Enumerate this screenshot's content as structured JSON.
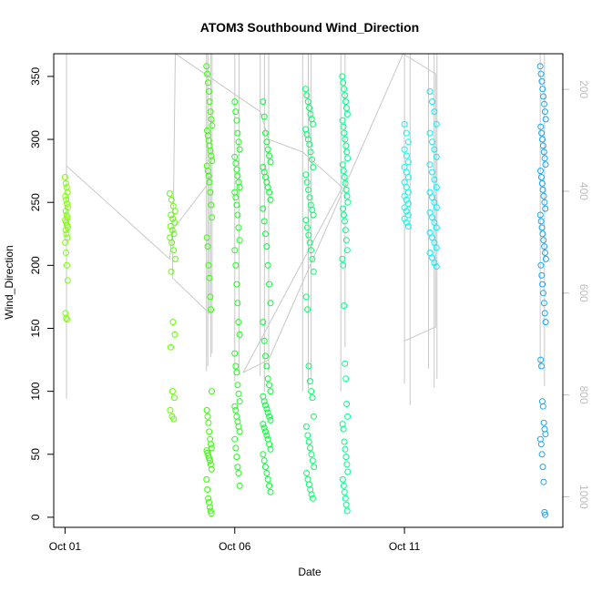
{
  "chart_data": {
    "type": "scatter",
    "title": "ATOM3 Southbound Wind_Direction",
    "xlabel": "Date",
    "ylabel": "Wind_Direction",
    "x_ticks": [
      {
        "date": "2016-10-01",
        "label": "Oct 01"
      },
      {
        "date": "2016-10-06",
        "label": "Oct 06"
      },
      {
        "date": "2016-10-11",
        "label": "Oct 11"
      }
    ],
    "xlim": [
      "2016-09-30T16:00",
      "2016-10-15T16:00"
    ],
    "y_ticks": [
      0,
      50,
      100,
      150,
      200,
      250,
      300,
      350
    ],
    "ylim": [
      -8,
      368
    ],
    "y2_ticks": [
      200,
      400,
      600,
      800,
      1000
    ],
    "y2lim": [
      1060,
      130
    ],
    "y2_axis_color": "#bdbdbd",
    "secondary_line_color": "#c8c8c8",
    "marker": "open-circle",
    "clusters": [
      {
        "start": "2016-10-01T00:00",
        "end": "2016-10-01T02:00",
        "color": "#7cff00",
        "values": [
          270,
          265,
          262,
          258,
          255,
          252,
          249,
          246,
          243,
          240,
          238,
          236,
          234,
          232,
          230,
          228,
          225,
          222,
          218,
          210,
          200,
          188,
          162,
          158,
          157
        ]
      },
      {
        "start": "2016-10-04T02:00",
        "end": "2016-10-04T06:00",
        "color": "#5eff00",
        "values": [
          257,
          252,
          247,
          243,
          240,
          237,
          234,
          231,
          228,
          225,
          222,
          218,
          212,
          205,
          195,
          155,
          145,
          135,
          100,
          95,
          85,
          80,
          78
        ]
      },
      {
        "start": "2016-10-05T04:00",
        "end": "2016-10-05T08:00",
        "color": "#33ff00",
        "values": [
          358,
          352,
          345,
          338,
          330,
          322,
          316,
          311,
          307,
          303,
          299,
          295,
          291,
          287,
          283,
          279,
          275,
          271,
          266,
          258,
          248,
          238,
          222,
          215,
          200,
          190,
          175,
          165,
          100,
          85,
          80,
          75,
          68,
          62,
          58,
          55,
          53,
          51,
          49,
          47,
          45,
          42,
          38,
          30,
          22,
          15,
          12,
          8,
          5,
          3
        ]
      },
      {
        "start": "2016-10-06T00:00",
        "end": "2016-10-06T04:00",
        "color": "#1aff1a",
        "values": [
          330,
          322,
          315,
          305,
          298,
          292,
          286,
          281,
          276,
          271,
          266,
          262,
          258,
          254,
          248,
          240,
          230,
          220,
          212,
          200,
          185,
          170,
          155,
          145,
          130,
          120,
          115,
          105,
          98,
          92,
          88,
          85,
          80,
          76,
          72,
          68,
          62,
          55,
          48,
          40,
          35,
          25
        ]
      },
      {
        "start": "2016-10-06T20:00",
        "end": "2016-10-07T02:00",
        "color": "#00ff33",
        "values": [
          330,
          318,
          305,
          298,
          292,
          287,
          282,
          278,
          274,
          270,
          266,
          262,
          258,
          252,
          245,
          235,
          225,
          215,
          200,
          185,
          170,
          155,
          140,
          128,
          120,
          110,
          105,
          100,
          96,
          92,
          89,
          86,
          83,
          80,
          77,
          74,
          71,
          68,
          65,
          62,
          58,
          54,
          50,
          45,
          40,
          35,
          30,
          25,
          20
        ]
      },
      {
        "start": "2016-10-08T02:00",
        "end": "2016-10-08T08:00",
        "color": "#00ff66",
        "values": [
          340,
          335,
          330,
          325,
          320,
          316,
          312,
          308,
          304,
          300,
          296,
          290,
          284,
          278,
          272,
          266,
          260,
          254,
          248,
          244,
          240,
          236,
          230,
          224,
          218,
          212,
          205,
          195,
          175,
          165,
          120,
          108,
          100,
          95,
          80,
          72,
          65,
          60,
          55,
          50,
          45,
          40,
          35,
          30,
          26,
          22,
          18,
          15
        ]
      },
      {
        "start": "2016-10-09T04:00",
        "end": "2016-10-09T08:00",
        "color": "#00ff88",
        "values": [
          350,
          345,
          340,
          335,
          330,
          325,
          320,
          315,
          310,
          305,
          300,
          295,
          290,
          285,
          280,
          275,
          270,
          265,
          260,
          255,
          250,
          245,
          240,
          235,
          228,
          220,
          212,
          205,
          200,
          168,
          122,
          110,
          90,
          80,
          74,
          70,
          60,
          54,
          48,
          42,
          36,
          30,
          25,
          20,
          15,
          10,
          5
        ]
      },
      {
        "start": "2016-10-11T00:00",
        "end": "2016-10-11T04:00",
        "color": "#00ffee",
        "values": [
          312,
          305,
          298,
          292,
          287,
          282,
          278,
          274,
          270,
          266,
          262,
          258,
          255,
          252,
          249,
          246,
          243,
          240,
          237,
          234,
          231
        ]
      },
      {
        "start": "2016-10-11T18:00",
        "end": "2016-10-12T00:00",
        "color": "#00f0ff",
        "values": [
          338,
          330,
          322,
          312,
          305,
          298,
          292,
          286,
          280,
          274,
          268,
          262,
          258,
          254,
          250,
          246,
          242,
          238,
          234,
          230,
          226,
          222,
          218,
          214,
          210,
          206,
          202,
          199
        ]
      },
      {
        "start": "2016-10-15T00:00",
        "end": "2016-10-15T04:00",
        "color": "#1aa6f0",
        "values": [
          358,
          352,
          346,
          340,
          334,
          328,
          322,
          316,
          310,
          305,
          300,
          295,
          290,
          285,
          280,
          275,
          270,
          265,
          260,
          255,
          250,
          245,
          240,
          235,
          230,
          225,
          220,
          215,
          210,
          205,
          200,
          192,
          185,
          178,
          170,
          162,
          155,
          125,
          120,
          92,
          88,
          75,
          70,
          66,
          62,
          58,
          50,
          40,
          28,
          4,
          2
        ]
      }
    ],
    "secondary_lines": [
      {
        "date": "2016-10-01T01:00",
        "lo": 94,
        "hi": 368
      },
      {
        "date": "2016-10-05T04:00",
        "lo": 116,
        "hi": 368
      },
      {
        "date": "2016-10-05T05:00",
        "lo": 120,
        "hi": 368
      },
      {
        "date": "2016-10-05T07:00",
        "lo": 127,
        "hi": 368
      },
      {
        "date": "2016-10-05T08:00",
        "lo": 130,
        "hi": 368
      },
      {
        "date": "2016-10-06T00:00",
        "lo": 108,
        "hi": 368
      },
      {
        "date": "2016-10-06T03:00",
        "lo": 116,
        "hi": 368
      },
      {
        "date": "2016-10-06T18:00",
        "lo": 112,
        "hi": 368
      },
      {
        "date": "2016-10-06T21:00",
        "lo": 100,
        "hi": 368
      },
      {
        "date": "2016-10-07T00:00",
        "lo": 115,
        "hi": 368
      },
      {
        "date": "2016-10-08T00:00",
        "lo": 100,
        "hi": 368
      },
      {
        "date": "2016-10-08T04:00",
        "lo": 102,
        "hi": 368
      },
      {
        "date": "2016-10-08T06:00",
        "lo": 110,
        "hi": 368
      },
      {
        "date": "2016-10-09T03:00",
        "lo": 100,
        "hi": 368
      },
      {
        "date": "2016-10-09T06:00",
        "lo": 135,
        "hi": 368
      },
      {
        "date": "2016-10-11T00:00",
        "lo": 106,
        "hi": 368
      },
      {
        "date": "2016-10-11T04:00",
        "lo": 89,
        "hi": 368
      },
      {
        "date": "2016-10-11T17:00",
        "lo": 118,
        "hi": 368
      },
      {
        "date": "2016-10-11T21:00",
        "lo": 103,
        "hi": 368
      },
      {
        "date": "2016-10-11T23:00",
        "lo": 110,
        "hi": 368
      },
      {
        "date": "2016-10-15T00:00",
        "lo": 118,
        "hi": 368
      },
      {
        "date": "2016-10-15T03:00",
        "lo": 104,
        "hi": 368
      }
    ],
    "secondary_path": [
      [
        "2016-10-01T01:00",
        279
      ],
      [
        "2016-10-04T02:00",
        205
      ],
      [
        "2016-10-04T04:00",
        228
      ],
      [
        "2016-10-05T04:00",
        263
      ],
      [
        "2016-10-05T06:00",
        271
      ],
      [
        "2016-10-05T06:00",
        162
      ],
      [
        "2016-10-04T04:00",
        190
      ],
      [
        "2016-10-04T06:00",
        368
      ],
      [
        "2016-10-06T18:00",
        322
      ],
      [
        "2016-10-07T00:00",
        300
      ],
      [
        "2016-10-08T00:00",
        290
      ],
      [
        "2016-10-09T04:00",
        262
      ],
      [
        "2016-10-06T06:00",
        115
      ],
      [
        "2016-10-07T00:00",
        125
      ],
      [
        "2016-10-10T23:00",
        368
      ],
      [
        "2016-10-11T22:00",
        352
      ],
      [
        "2016-10-11T22:00",
        151
      ],
      [
        "2016-10-11T00:00",
        140
      ]
    ]
  }
}
